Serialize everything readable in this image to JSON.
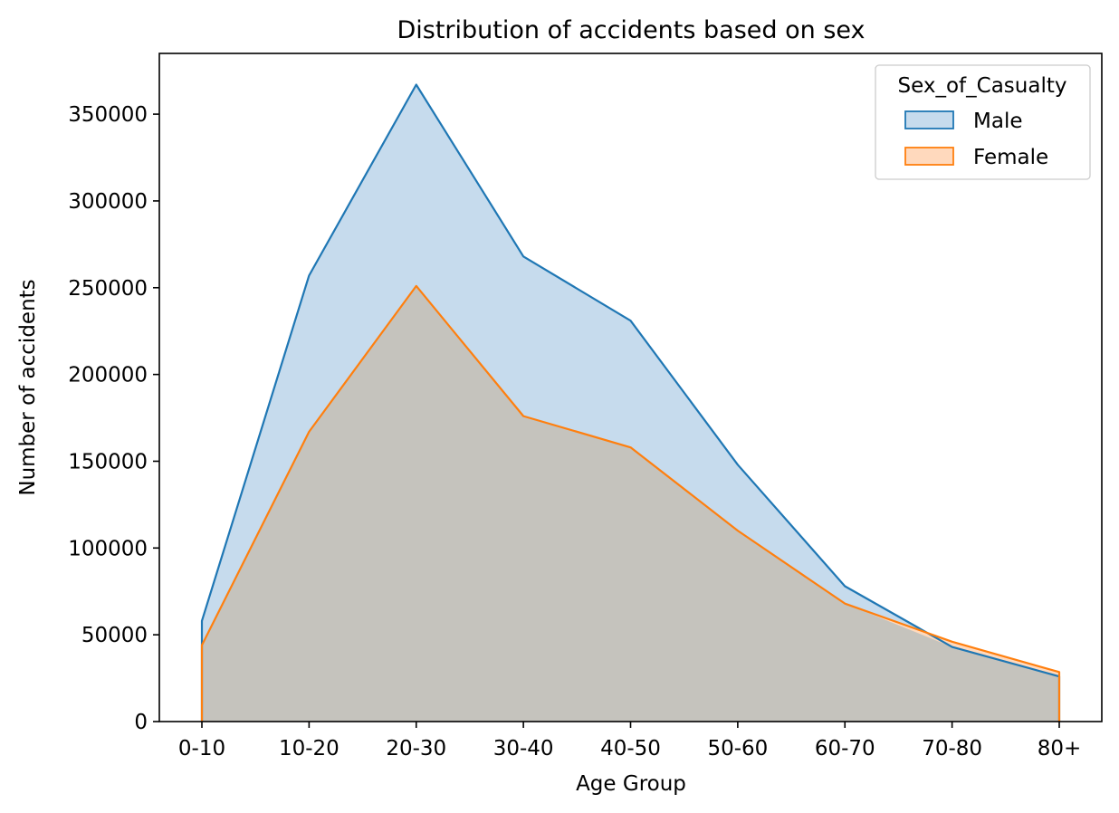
{
  "chart_data": {
    "type": "area",
    "title": "Distribution of accidents based on sex",
    "xlabel": "Age Group",
    "ylabel": "Number of accidents",
    "categories": [
      "0-10",
      "10-20",
      "20-30",
      "30-40",
      "40-50",
      "50-60",
      "60-70",
      "70-80",
      "80+"
    ],
    "ylim": [
      0,
      385000
    ],
    "yticks": [
      0,
      50000,
      100000,
      150000,
      200000,
      250000,
      300000,
      350000
    ],
    "grid": false,
    "legend": {
      "title": "Sex_of_Casualty",
      "placement": "top-right"
    },
    "series": [
      {
        "name": "Male",
        "color": "#1f77b4",
        "fill_color": "#c6dbed",
        "values": [
          58000,
          257000,
          367000,
          268000,
          231000,
          148000,
          78000,
          43000,
          26000
        ]
      },
      {
        "name": "Female",
        "color": "#ff7f0e",
        "fill_color": "#ffd9bd",
        "values": [
          44000,
          167000,
          251000,
          176000,
          158000,
          110000,
          68000,
          46000,
          28500
        ]
      }
    ],
    "overlap_fill_color": "#c5c3bd",
    "overlap_line_color": "#b8743f"
  }
}
